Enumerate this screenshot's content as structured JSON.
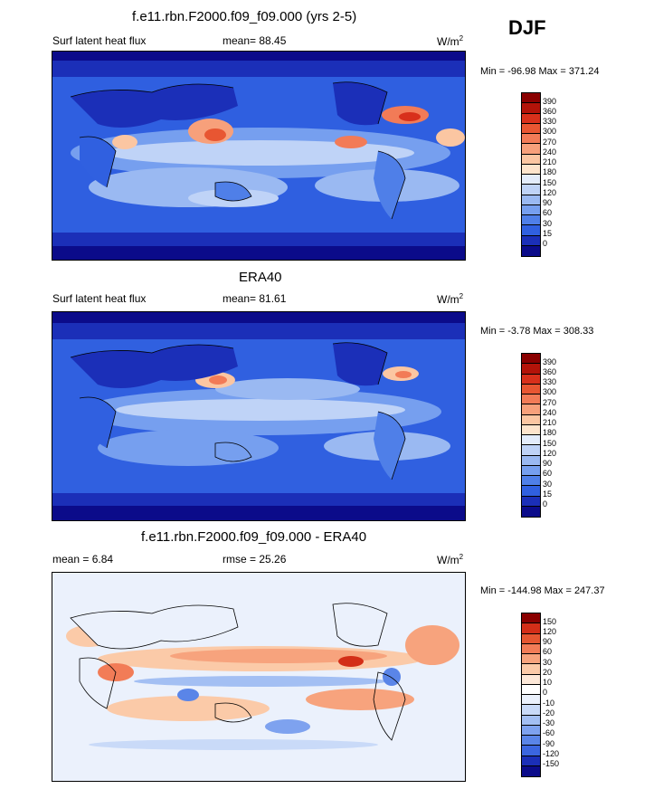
{
  "season": "DJF",
  "colors": {
    "flux_scale": [
      "#0b0b8a",
      "#1b2fb8",
      "#2749d0",
      "#3060e0",
      "#4f7fe8",
      "#769fef",
      "#9ab9f2",
      "#bfd3f7",
      "#e3ecfb",
      "#fde4cc",
      "#fbc6a2",
      "#f7a07b",
      "#f27b57",
      "#e85632",
      "#d8301b",
      "#b31309",
      "#8a0000"
    ],
    "diff_scale": [
      "#0b0b8a",
      "#1b2fb8",
      "#2749d0",
      "#3b66e0",
      "#5a85e8",
      "#7ea2ef",
      "#a3bff3",
      "#c9daf8",
      "#ebf1fc",
      "#fde8d8",
      "#fbcaa8",
      "#f7a37d",
      "#f27c57",
      "#e55631",
      "#d32e18",
      "#8a0000"
    ]
  },
  "panels": [
    {
      "title": "f.e11.rbn.F2000.f09_f09.000 (yrs 2-5)",
      "left_label": "Surf latent heat flux",
      "center_label": "mean=  88.45",
      "units": "W/m",
      "units_exp": "2",
      "minmax": "Min = -96.98 Max = 371.24",
      "colorbar_labels": [
        "390",
        "360",
        "330",
        "300",
        "270",
        "240",
        "210",
        "180",
        "150",
        "120",
        "90",
        "60",
        "30",
        "15",
        "0"
      ]
    },
    {
      "title": "ERA40",
      "left_label": "Surf latent heat flux",
      "center_label": "mean=  81.61",
      "units": "W/m",
      "units_exp": "2",
      "minmax": "Min =  -3.78 Max = 308.33",
      "colorbar_labels": [
        "390",
        "360",
        "330",
        "300",
        "270",
        "240",
        "210",
        "180",
        "150",
        "120",
        "90",
        "60",
        "30",
        "15",
        "0"
      ]
    },
    {
      "title": "f.e11.rbn.F2000.f09_f09.000 - ERA40",
      "left_label": "mean =   6.84",
      "center_label": "rmse =  25.26",
      "units": "W/m",
      "units_exp": "2",
      "minmax": "Min = -144.98 Max = 247.37",
      "colorbar_labels": [
        "150",
        "120",
        "90",
        "60",
        "30",
        "20",
        "10",
        "0",
        "-10",
        "-20",
        "-30",
        "-60",
        "-90",
        "-120",
        "-150"
      ]
    }
  ],
  "chart_data": [
    {
      "type": "heatmap",
      "title": "f.e11.rbn.F2000.f09_f09.000 (yrs 2-5)",
      "variable": "Surf latent heat flux",
      "units": "W/m2",
      "mean": 88.45,
      "min": -96.98,
      "max": 371.24,
      "levels": [
        0,
        15,
        30,
        60,
        90,
        120,
        150,
        180,
        210,
        240,
        270,
        300,
        330,
        360,
        390
      ]
    },
    {
      "type": "heatmap",
      "title": "ERA40",
      "variable": "Surf latent heat flux",
      "units": "W/m2",
      "mean": 81.61,
      "min": -3.78,
      "max": 308.33,
      "levels": [
        0,
        15,
        30,
        60,
        90,
        120,
        150,
        180,
        210,
        240,
        270,
        300,
        330,
        360,
        390
      ]
    },
    {
      "type": "heatmap",
      "title": "f.e11.rbn.F2000.f09_f09.000 - ERA40",
      "units": "W/m2",
      "mean": 6.84,
      "rmse": 25.26,
      "min": -144.98,
      "max": 247.37,
      "levels": [
        -150,
        -120,
        -90,
        -60,
        -30,
        -20,
        -10,
        0,
        10,
        20,
        30,
        60,
        90,
        120,
        150
      ]
    }
  ]
}
